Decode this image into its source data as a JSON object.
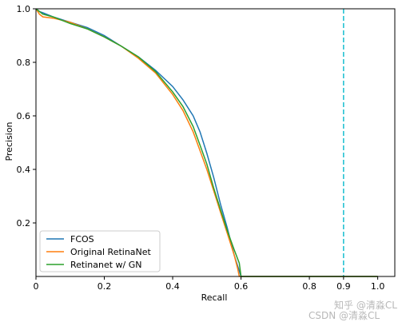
{
  "chart_data": {
    "type": "line",
    "xlabel": "Recall",
    "ylabel": "Precision",
    "xlim": [
      0,
      1.05
    ],
    "ylim": [
      0,
      1.0
    ],
    "x_ticks": [
      0,
      0.2,
      0.4,
      0.6,
      0.8,
      0.9,
      1.0
    ],
    "x_tick_labels": [
      "0",
      "0.2",
      "0.4",
      "0.6",
      "0.8",
      "0.9",
      "1.0"
    ],
    "y_ticks": [
      0.2,
      0.4,
      0.6,
      0.8,
      1.0
    ],
    "y_tick_labels": [
      "0.2",
      "0.4",
      "0.6",
      "0.8",
      "1.0"
    ],
    "grid": false,
    "legend_position": "bottom-left",
    "vline": {
      "x": 0.9,
      "style": "dashed",
      "color": "#17becf"
    },
    "series": [
      {
        "name": "FCOS",
        "color": "#1f77b4",
        "points": [
          [
            0,
            1.0
          ],
          [
            0.01,
            0.99
          ],
          [
            0.02,
            0.985
          ],
          [
            0.05,
            0.97
          ],
          [
            0.1,
            0.95
          ],
          [
            0.15,
            0.93
          ],
          [
            0.2,
            0.9
          ],
          [
            0.25,
            0.86
          ],
          [
            0.3,
            0.82
          ],
          [
            0.35,
            0.77
          ],
          [
            0.4,
            0.71
          ],
          [
            0.43,
            0.66
          ],
          [
            0.46,
            0.6
          ],
          [
            0.48,
            0.54
          ],
          [
            0.5,
            0.46
          ],
          [
            0.52,
            0.37
          ],
          [
            0.54,
            0.27
          ],
          [
            0.56,
            0.18
          ],
          [
            0.58,
            0.08
          ],
          [
            0.59,
            0.04
          ],
          [
            0.6,
            0.0
          ],
          [
            1.0,
            0.0
          ]
        ]
      },
      {
        "name": "Original RetinaNet",
        "color": "#ff7f0e",
        "points": [
          [
            0,
            1.0
          ],
          [
            0.01,
            0.98
          ],
          [
            0.02,
            0.97
          ],
          [
            0.05,
            0.965
          ],
          [
            0.1,
            0.95
          ],
          [
            0.15,
            0.925
          ],
          [
            0.2,
            0.895
          ],
          [
            0.25,
            0.86
          ],
          [
            0.3,
            0.815
          ],
          [
            0.35,
            0.76
          ],
          [
            0.4,
            0.68
          ],
          [
            0.43,
            0.62
          ],
          [
            0.46,
            0.54
          ],
          [
            0.48,
            0.47
          ],
          [
            0.5,
            0.4
          ],
          [
            0.52,
            0.32
          ],
          [
            0.54,
            0.24
          ],
          [
            0.56,
            0.16
          ],
          [
            0.58,
            0.08
          ],
          [
            0.59,
            0.03
          ],
          [
            0.595,
            0.0
          ],
          [
            1.0,
            0.0
          ]
        ]
      },
      {
        "name": "Retinanet w/ GN",
        "color": "#2ca02c",
        "points": [
          [
            0,
            1.0
          ],
          [
            0.01,
            0.99
          ],
          [
            0.02,
            0.98
          ],
          [
            0.05,
            0.97
          ],
          [
            0.1,
            0.945
          ],
          [
            0.15,
            0.925
          ],
          [
            0.2,
            0.895
          ],
          [
            0.25,
            0.86
          ],
          [
            0.3,
            0.82
          ],
          [
            0.35,
            0.765
          ],
          [
            0.4,
            0.69
          ],
          [
            0.43,
            0.635
          ],
          [
            0.46,
            0.56
          ],
          [
            0.48,
            0.49
          ],
          [
            0.5,
            0.42
          ],
          [
            0.52,
            0.33
          ],
          [
            0.54,
            0.25
          ],
          [
            0.56,
            0.17
          ],
          [
            0.58,
            0.1
          ],
          [
            0.595,
            0.05
          ],
          [
            0.6,
            0.0
          ],
          [
            1.0,
            0.0
          ]
        ]
      }
    ],
    "watermark": "知乎 @清淼CL",
    "watermark2": "CSDN @清淼CL"
  }
}
